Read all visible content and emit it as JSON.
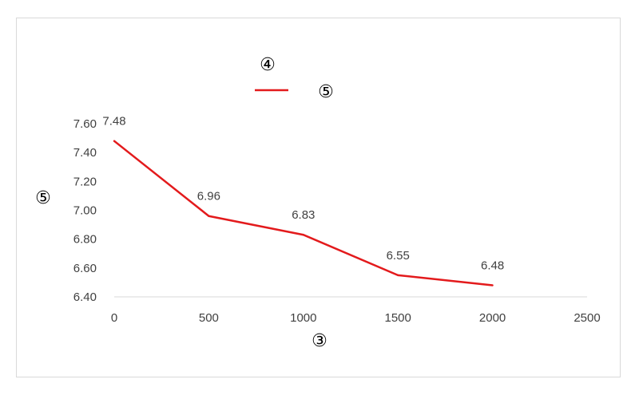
{
  "chart_data": {
    "type": "line",
    "title": "④",
    "xlabel": "③",
    "ylabel": "⑤",
    "x": [
      0,
      500,
      1000,
      1500,
      2000
    ],
    "series": [
      {
        "name": "⑤",
        "values": [
          7.48,
          6.96,
          6.83,
          6.55,
          6.48
        ],
        "data_labels": [
          "7.48",
          "6.96",
          "6.83",
          "6.55",
          "6.48"
        ],
        "color": "#e31a1c"
      }
    ],
    "xlim": [
      0,
      2500
    ],
    "ylim": [
      6.4,
      7.6
    ],
    "x_ticks": [
      0,
      500,
      1000,
      1500,
      2000,
      2500
    ],
    "x_tick_labels": [
      "0",
      "500",
      "1000",
      "1500",
      "2000",
      "2500"
    ],
    "y_ticks": [
      6.4,
      6.6,
      6.8,
      7.0,
      7.2,
      7.4,
      7.6
    ],
    "y_tick_labels": [
      "6.40",
      "6.60",
      "6.80",
      "7.00",
      "7.20",
      "7.40",
      "7.60"
    ],
    "grid": false,
    "legend_position": "top-center",
    "axis_color": "#d9d9d9"
  }
}
